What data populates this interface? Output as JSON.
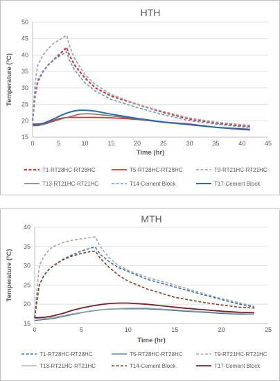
{
  "chart_data": [
    {
      "type": "line",
      "title": "HTH",
      "xlabel": "Time (hr)",
      "ylabel": "Temperature (ºC)",
      "xlim": [
        0,
        45
      ],
      "ylim": [
        15,
        50
      ],
      "xticks": [
        "0",
        "5",
        "10",
        "15",
        "20",
        "25",
        "30",
        "35",
        "40",
        "45"
      ],
      "yticks": [
        "15",
        "20",
        "25",
        "30",
        "35",
        "40",
        "45",
        "50"
      ],
      "grid": true,
      "legend_position": "bottom",
      "series": [
        {
          "name": "T1-RT28HC-RT28HC",
          "color": "#e03131",
          "dash": "dashed",
          "width": 2.2,
          "x": [
            0,
            0.5,
            1,
            2,
            3,
            4,
            5,
            6,
            6.5,
            7,
            8,
            9,
            10,
            12,
            15,
            20,
            25,
            30,
            35,
            40,
            41.5
          ],
          "y": [
            20,
            28,
            32,
            35,
            37,
            38.5,
            40,
            41.5,
            42.3,
            40,
            37,
            35,
            33,
            30,
            27.5,
            25,
            22.5,
            20.5,
            19.3,
            18.4,
            18.2
          ]
        },
        {
          "name": "T5-RT28HC-RT28HC",
          "color": "#e03131",
          "dash": "solid",
          "width": 1.8,
          "x": [
            0,
            1,
            2,
            3,
            4,
            5,
            6,
            7,
            8,
            10,
            12,
            15,
            20,
            25,
            30,
            35,
            40,
            41.5
          ],
          "y": [
            19,
            19,
            19.2,
            19.6,
            20.1,
            20.6,
            20.9,
            21,
            21,
            21,
            21,
            20.9,
            20.4,
            19.6,
            19,
            18,
            17.3,
            17.2
          ]
        },
        {
          "name": "T9-RT21HC-RT21HC",
          "color": "#a6a6a6",
          "dash": "dashed",
          "width": 1.8,
          "x": [
            0,
            0.5,
            1,
            2,
            3,
            4,
            5,
            6,
            6.5,
            7,
            8,
            9,
            10,
            12,
            15,
            20,
            25,
            30,
            35,
            40,
            41.5
          ],
          "y": [
            20,
            32,
            37,
            40,
            42,
            43.5,
            44.5,
            45.5,
            46,
            43,
            39,
            36.5,
            34,
            31,
            28,
            25,
            22.8,
            20.8,
            19.6,
            18.8,
            18.6
          ]
        },
        {
          "name": "T13-RT21HC-RT21HC",
          "color": "#8c6d6d",
          "dash": "solid",
          "width": 1.6,
          "x": [
            0,
            1,
            2,
            3,
            4,
            5,
            6,
            7,
            8,
            9,
            10,
            11,
            12,
            15,
            20,
            25,
            30,
            35,
            40,
            41.5
          ],
          "y": [
            18.5,
            18.5,
            18.8,
            19.3,
            19.8,
            20.3,
            20.8,
            21.2,
            21.6,
            22,
            22.1,
            22.1,
            22,
            21.5,
            20.5,
            19.5,
            18.8,
            18,
            17.4,
            17.3
          ]
        },
        {
          "name": "T14-Cement Block",
          "color": "#5b9bd5",
          "dash": "dashed",
          "width": 1.6,
          "x": [
            0,
            0.5,
            1,
            2,
            3,
            4,
            5,
            6,
            6.5,
            7,
            8,
            9,
            10,
            12,
            15,
            20,
            25,
            30,
            35,
            40,
            41.5
          ],
          "y": [
            20,
            29,
            32.5,
            35,
            37,
            38.5,
            39.5,
            40.5,
            41,
            38.5,
            35.5,
            33.5,
            31.5,
            29,
            26.5,
            24,
            21.8,
            20,
            19,
            18.1,
            18
          ]
        },
        {
          "name": "T17-Cement Block",
          "color": "#1f6fb5",
          "dash": "solid",
          "width": 2,
          "x": [
            0,
            1,
            2,
            3,
            4,
            5,
            6,
            7,
            8,
            9,
            10,
            11,
            12,
            15,
            20,
            25,
            30,
            35,
            40,
            41.5
          ],
          "y": [
            18.8,
            18.8,
            19.2,
            19.8,
            20.5,
            21.3,
            22,
            22.6,
            23,
            23.2,
            23.2,
            23.1,
            22.9,
            22,
            20.7,
            19.6,
            18.8,
            18,
            17.5,
            17.4
          ]
        }
      ]
    },
    {
      "type": "line",
      "title": "MTH",
      "xlabel": "Time (hr)",
      "ylabel": "Temperature (ºC)",
      "xlim": [
        0,
        25
      ],
      "ylim": [
        15,
        40
      ],
      "xticks": [
        "0",
        "5",
        "10",
        "15",
        "20",
        "25"
      ],
      "yticks": [
        "15",
        "20",
        "25",
        "30",
        "35",
        "40"
      ],
      "grid": true,
      "legend_position": "bottom",
      "series": [
        {
          "name": "T1-RT28HC-RT28HC",
          "color": "#2e75b6",
          "dash": "dashed",
          "width": 1.6,
          "x": [
            0,
            0.25,
            0.5,
            1,
            1.5,
            2,
            3,
            4,
            5,
            6,
            6.5,
            7,
            8,
            9,
            10,
            12,
            15,
            18,
            20,
            22,
            23.5
          ],
          "y": [
            16.5,
            21,
            25,
            27.5,
            29,
            30,
            31.6,
            32.8,
            33.8,
            34.6,
            34.8,
            33,
            31,
            29.5,
            28.5,
            26.5,
            24.5,
            22.5,
            21.2,
            20,
            19.3
          ]
        },
        {
          "name": "T5-RT28HC-RT28HC",
          "color": "#2e75b6",
          "dash": "solid",
          "width": 1.3,
          "x": [
            0,
            1,
            2,
            3,
            4,
            5,
            6,
            7,
            8,
            9,
            10,
            12,
            14,
            16,
            18,
            20,
            22,
            23.5
          ],
          "y": [
            15.8,
            16,
            16.3,
            16.8,
            17.3,
            17.8,
            18.2,
            18.5,
            18.7,
            18.8,
            18.8,
            18.8,
            18.5,
            18.2,
            17.9,
            17.6,
            17.4,
            17.4
          ]
        },
        {
          "name": "T9-RT21HC-RT21HC",
          "color": "#a6a6a6",
          "dash": "dashed",
          "width": 1.6,
          "x": [
            0,
            0.25,
            0.5,
            1,
            1.5,
            2,
            3,
            4,
            5,
            6,
            6.5,
            7,
            8,
            9,
            10,
            12,
            15,
            18,
            20,
            22,
            23.5
          ],
          "y": [
            16.5,
            24,
            30,
            32.5,
            34,
            35,
            36,
            36.6,
            37,
            37.3,
            37.5,
            35,
            32,
            30,
            28.8,
            27,
            25,
            22.8,
            21.5,
            20.3,
            19.5
          ]
        },
        {
          "name": "T13-RT21HC-RT21HC",
          "color": "#a6a6a6",
          "dash": "solid",
          "width": 1.3,
          "x": [
            0,
            1,
            2,
            3,
            4,
            5,
            6,
            7,
            8,
            9,
            10,
            12,
            14,
            16,
            18,
            20,
            22,
            23.5
          ],
          "y": [
            16.2,
            16.3,
            16.6,
            17,
            17.5,
            17.9,
            18.3,
            18.6,
            18.8,
            18.9,
            19,
            19,
            18.7,
            18.4,
            18.1,
            17.8,
            17.6,
            17.5
          ]
        },
        {
          "name": "T14-Cement Block",
          "color": "#7f3f1f",
          "dash": "dashed",
          "width": 1.6,
          "x": [
            0,
            0.25,
            0.5,
            1,
            1.5,
            2,
            3,
            4,
            5,
            6,
            6.5,
            7,
            8,
            9,
            10,
            12,
            15,
            18,
            20,
            22,
            23.5
          ],
          "y": [
            16.5,
            21,
            25,
            27.5,
            29,
            30,
            31.5,
            32.5,
            33.2,
            33.7,
            33.8,
            32,
            29.5,
            27.5,
            26,
            24,
            21.8,
            20.5,
            19.8,
            19.2,
            19
          ]
        },
        {
          "name": "T17-Cement Block",
          "color": "#7f1f1f",
          "dash": "solid",
          "width": 1.8,
          "x": [
            0,
            1,
            2,
            3,
            4,
            5,
            6,
            7,
            8,
            9,
            10,
            12,
            14,
            16,
            18,
            20,
            22,
            23.5
          ],
          "y": [
            16.5,
            16.6,
            17,
            17.6,
            18.4,
            19,
            19.5,
            19.9,
            20.2,
            20.3,
            20.3,
            20,
            19.5,
            19,
            18.6,
            18.2,
            17.9,
            17.8
          ]
        }
      ]
    }
  ]
}
